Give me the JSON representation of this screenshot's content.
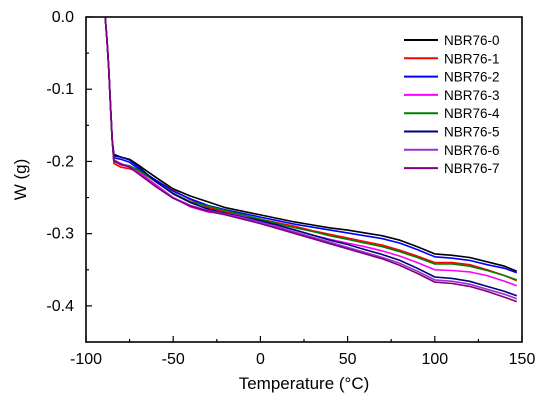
{
  "chart_data": {
    "type": "line",
    "title": "",
    "xlabel": "Temperature (°C)",
    "ylabel": "W (g)",
    "xlim": [
      -100,
      150
    ],
    "ylim": [
      -0.45,
      0.0
    ],
    "xticks": [
      -100,
      -50,
      0,
      50,
      100,
      150
    ],
    "yticks": [
      0.0,
      -0.1,
      -0.2,
      -0.3,
      -0.4
    ],
    "xtick_labels": [
      "-100",
      "-50",
      "0",
      "50",
      "100",
      "150"
    ],
    "ytick_labels": [
      "0.0",
      "-0.1",
      "-0.2",
      "-0.3",
      "-0.4"
    ],
    "grid": false,
    "legend_position": "top-right",
    "x": [
      -89,
      -88,
      -87,
      -86,
      -85,
      -84,
      -80,
      -75,
      -70,
      -60,
      -50,
      -40,
      -30,
      -20,
      -10,
      0,
      10,
      20,
      30,
      40,
      50,
      60,
      70,
      80,
      90,
      100,
      110,
      120,
      130,
      140,
      147
    ],
    "series": [
      {
        "name": "NBR76-0",
        "color": "#000000",
        "values": [
          0.0,
          -0.03,
          -0.07,
          -0.12,
          -0.17,
          -0.192,
          -0.194,
          -0.197,
          -0.205,
          -0.222,
          -0.238,
          -0.248,
          -0.256,
          -0.264,
          -0.269,
          -0.274,
          -0.279,
          -0.284,
          -0.288,
          -0.292,
          -0.295,
          -0.299,
          -0.303,
          -0.309,
          -0.318,
          -0.328,
          -0.33,
          -0.333,
          -0.339,
          -0.345,
          -0.352
        ]
      },
      {
        "name": "NBR76-1",
        "color": "#ff0000",
        "values": [
          0.0,
          -0.03,
          -0.07,
          -0.12,
          -0.17,
          -0.203,
          -0.208,
          -0.21,
          -0.214,
          -0.226,
          -0.24,
          -0.253,
          -0.264,
          -0.27,
          -0.275,
          -0.28,
          -0.285,
          -0.29,
          -0.296,
          -0.301,
          -0.306,
          -0.311,
          -0.316,
          -0.323,
          -0.331,
          -0.34,
          -0.34,
          -0.343,
          -0.35,
          -0.358,
          -0.365
        ]
      },
      {
        "name": "NBR76-2",
        "color": "#0000ff",
        "values": [
          0.0,
          -0.03,
          -0.07,
          -0.12,
          -0.17,
          -0.195,
          -0.197,
          -0.201,
          -0.21,
          -0.226,
          -0.241,
          -0.252,
          -0.261,
          -0.267,
          -0.272,
          -0.277,
          -0.282,
          -0.287,
          -0.291,
          -0.295,
          -0.299,
          -0.303,
          -0.307,
          -0.313,
          -0.322,
          -0.332,
          -0.334,
          -0.337,
          -0.343,
          -0.348,
          -0.354
        ]
      },
      {
        "name": "NBR76-3",
        "color": "#ff00ff",
        "values": [
          0.0,
          -0.03,
          -0.07,
          -0.12,
          -0.17,
          -0.2,
          -0.205,
          -0.207,
          -0.214,
          -0.232,
          -0.25,
          -0.263,
          -0.27,
          -0.272,
          -0.276,
          -0.282,
          -0.289,
          -0.295,
          -0.302,
          -0.308,
          -0.313,
          -0.318,
          -0.324,
          -0.331,
          -0.34,
          -0.35,
          -0.351,
          -0.353,
          -0.358,
          -0.366,
          -0.372
        ]
      },
      {
        "name": "NBR76-4",
        "color": "#008000",
        "values": [
          0.0,
          -0.03,
          -0.07,
          -0.12,
          -0.17,
          -0.2,
          -0.204,
          -0.206,
          -0.212,
          -0.228,
          -0.244,
          -0.256,
          -0.262,
          -0.268,
          -0.274,
          -0.28,
          -0.286,
          -0.292,
          -0.297,
          -0.303,
          -0.308,
          -0.313,
          -0.318,
          -0.325,
          -0.333,
          -0.342,
          -0.342,
          -0.345,
          -0.351,
          -0.358,
          -0.364
        ]
      },
      {
        "name": "NBR76-5",
        "color": "#000080",
        "values": [
          0.0,
          -0.03,
          -0.07,
          -0.12,
          -0.17,
          -0.19,
          -0.194,
          -0.198,
          -0.207,
          -0.228,
          -0.245,
          -0.257,
          -0.266,
          -0.272,
          -0.277,
          -0.282,
          -0.288,
          -0.295,
          -0.302,
          -0.309,
          -0.315,
          -0.322,
          -0.329,
          -0.337,
          -0.348,
          -0.36,
          -0.362,
          -0.366,
          -0.373,
          -0.38,
          -0.386
        ]
      },
      {
        "name": "NBR76-6",
        "color": "#9932cc",
        "values": [
          0.0,
          -0.03,
          -0.07,
          -0.12,
          -0.17,
          -0.198,
          -0.203,
          -0.207,
          -0.216,
          -0.234,
          -0.25,
          -0.261,
          -0.268,
          -0.273,
          -0.278,
          -0.284,
          -0.291,
          -0.298,
          -0.305,
          -0.312,
          -0.319,
          -0.326,
          -0.333,
          -0.341,
          -0.352,
          -0.364,
          -0.366,
          -0.37,
          -0.377,
          -0.384,
          -0.39
        ]
      },
      {
        "name": "NBR76-7",
        "color": "#800080",
        "values": [
          0.0,
          -0.03,
          -0.07,
          -0.12,
          -0.17,
          -0.199,
          -0.204,
          -0.208,
          -0.217,
          -0.235,
          -0.251,
          -0.262,
          -0.269,
          -0.274,
          -0.28,
          -0.286,
          -0.293,
          -0.3,
          -0.307,
          -0.314,
          -0.321,
          -0.328,
          -0.335,
          -0.344,
          -0.355,
          -0.367,
          -0.369,
          -0.373,
          -0.38,
          -0.388,
          -0.394
        ]
      }
    ]
  }
}
